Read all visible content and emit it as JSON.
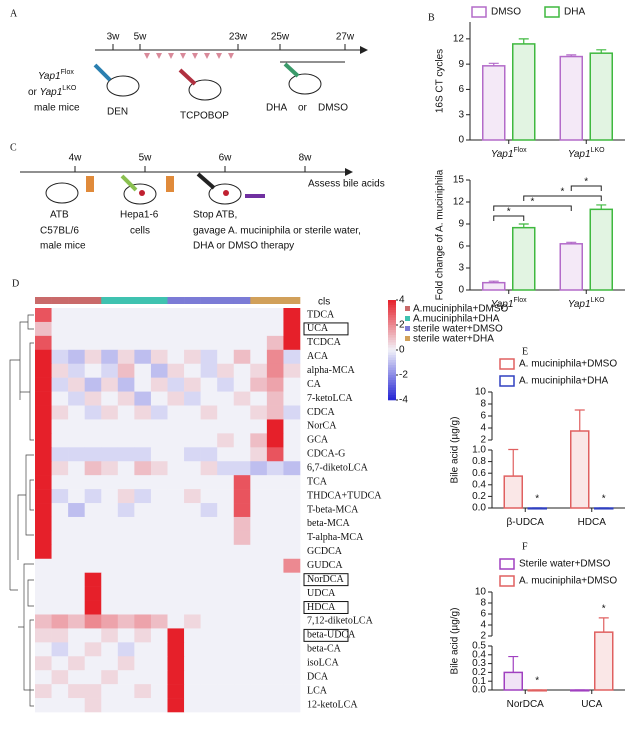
{
  "panel_a": {
    "label": "A",
    "times": [
      "3w",
      "5w",
      "23w",
      "25w",
      "27w"
    ],
    "subject": {
      "gene1": "Yap1",
      "sup1": "Flox",
      "prefix2": "or ",
      "gene2": "Yap1",
      "sup2": "LKO",
      "line3": "male mice"
    },
    "treatments": [
      "DEN",
      "TCPOBOP",
      "DHA",
      "or",
      "DMSO"
    ]
  },
  "panel_c": {
    "label": "C",
    "times": [
      "4w",
      "5w",
      "6w",
      "8w"
    ],
    "endpoint": "Assess bile acids",
    "steps": [
      "ATB",
      "C57BL/6",
      "male mice",
      "Hepa1-6",
      "cells",
      "Stop ATB,",
      "gavage A. muciniphila or sterile water,",
      "DHA or DMSO therapy"
    ]
  },
  "chart_data": [
    {
      "type": "bar",
      "panel": "B",
      "y_label": "16S  CT  cycles",
      "categories": [
        "Yap1",
        "Yap1"
      ],
      "category_superscripts": [
        "Flox",
        "LKO"
      ],
      "series": [
        {
          "name": "DMSO",
          "color": "#b36bc9",
          "values": [
            8.8,
            9.9
          ],
          "errors": [
            0.3,
            0.2
          ]
        },
        {
          "name": "DHA",
          "color": "#3fb83f",
          "values": [
            11.4,
            10.3
          ],
          "errors": [
            0.6,
            0.4
          ]
        }
      ],
      "ylim": [
        0,
        14
      ],
      "yticks": [
        0,
        3,
        6,
        9,
        12
      ]
    },
    {
      "type": "bar",
      "y_label": "Fold change of A. muciniphila",
      "categories": [
        "Yap1",
        "Yap1"
      ],
      "category_superscripts": [
        "Flox",
        "LKO"
      ],
      "series": [
        {
          "name": "DMSO",
          "color": "#b36bc9",
          "values": [
            1.0,
            6.3
          ],
          "errors": [
            0.2,
            0.2
          ]
        },
        {
          "name": "DHA",
          "color": "#3fb83f",
          "values": [
            8.5,
            11.0
          ],
          "errors": [
            0.5,
            0.6
          ]
        }
      ],
      "ylim": [
        0,
        15
      ],
      "yticks": [
        0,
        3,
        6,
        9,
        12,
        15
      ],
      "annotations": [
        "*",
        "*",
        "*",
        "*"
      ]
    },
    {
      "type": "heatmap",
      "panel": "D",
      "legend_title": "cls",
      "zlim": [
        -4,
        4
      ],
      "colorbar_ticks": [
        4,
        2,
        0,
        -2,
        -4
      ],
      "colors": [
        "#2424d4",
        "#f1f1f8",
        "#e6202a"
      ],
      "groups": [
        {
          "name": "A.muciniphila+DMSO",
          "color": "#c96a6a",
          "columns": 4
        },
        {
          "name": "A.muciniphila+DHA",
          "color": "#3fc2b0",
          "columns": 4
        },
        {
          "name": "sterile water+DMSO",
          "color": "#7b7bd6",
          "columns": 5
        },
        {
          "name": "sterile water+DHA",
          "color": "#d1a05a",
          "columns": 3
        }
      ],
      "rows": [
        "TDCA",
        "UCA",
        "TCDCA",
        "ACA",
        "alpha-MCA",
        "CA",
        "7-ketoLCA",
        "CDCA",
        "NorCA",
        "GCA",
        "CDCA-G",
        "6,7-diketoLCA",
        "TCA",
        "THDCA+TUDCA",
        "T-beta-MCA",
        "beta-MCA",
        "T-alpha-MCA",
        "GCDCA",
        "GUDCA",
        "NorDCA",
        "UDCA",
        "HDCA",
        "7,12-diketoLCA",
        "beta-UDCA",
        "beta-CA",
        "isoLCA",
        "DCA",
        "LCA",
        "12-ketoLCA"
      ],
      "boxed_rows": [
        1,
        19,
        21,
        23
      ],
      "values": [
        [
          3,
          0,
          0,
          0,
          0,
          0,
          0,
          0,
          0,
          0,
          0,
          0,
          0,
          0,
          0,
          4
        ],
        [
          1,
          0,
          0,
          0,
          0,
          0,
          0,
          0,
          0,
          0,
          0,
          0,
          0,
          0,
          0,
          4
        ],
        [
          3,
          0,
          0,
          0,
          0,
          0,
          0,
          0,
          0,
          0,
          0,
          0,
          0,
          0,
          1,
          4
        ],
        [
          4,
          -0.5,
          -1,
          0.5,
          -1,
          0.5,
          -1,
          0.5,
          0,
          0.5,
          -0.5,
          0,
          1,
          0,
          2,
          -0.5
        ],
        [
          4,
          0.5,
          -0.5,
          0,
          -0.5,
          1,
          0,
          -1,
          0.5,
          0,
          -0.5,
          0.5,
          0,
          0.5,
          2,
          0.5
        ],
        [
          4,
          -0.5,
          0.5,
          -1,
          0.5,
          -1,
          0,
          0.5,
          -0.5,
          0.5,
          0,
          -0.5,
          0,
          1,
          1.5,
          0
        ],
        [
          4,
          0,
          -0.5,
          0.5,
          0,
          0.5,
          -1,
          0,
          0.5,
          -0.5,
          0,
          0,
          0.5,
          0,
          1,
          0
        ],
        [
          4,
          0.5,
          0,
          -0.5,
          0.5,
          0,
          0.5,
          -0.5,
          0,
          0,
          0.5,
          0,
          0,
          0.5,
          1,
          -0.5
        ],
        [
          4,
          0,
          0,
          0,
          0,
          0,
          0,
          0,
          0,
          0,
          0,
          0,
          0,
          0,
          4,
          0
        ],
        [
          4,
          0,
          0,
          0,
          0,
          0,
          0,
          0,
          0,
          0,
          0,
          0.5,
          0,
          1,
          4,
          0
        ],
        [
          4,
          -0.5,
          -0.5,
          -0.5,
          -0.5,
          -0.5,
          -0.5,
          0,
          0,
          -0.5,
          -0.5,
          0,
          0,
          0.5,
          3,
          0
        ],
        [
          4,
          0.5,
          0,
          1,
          0.5,
          0,
          1,
          0.5,
          0,
          0,
          0.5,
          -0.5,
          -0.5,
          -1,
          -0.5,
          -1
        ],
        [
          4,
          0,
          0,
          0,
          0,
          0,
          0,
          0,
          0,
          0,
          0,
          0,
          3,
          0,
          0,
          0
        ],
        [
          4,
          -0.5,
          0,
          -0.5,
          0,
          0.5,
          -0.5,
          0,
          0,
          0.5,
          0,
          0,
          3,
          0,
          0,
          0
        ],
        [
          4,
          0,
          -1,
          0,
          0,
          -0.5,
          0,
          0,
          0,
          0,
          -0.5,
          0,
          3,
          0,
          0,
          0
        ],
        [
          4,
          0,
          0,
          0,
          0,
          0,
          0,
          0,
          0,
          0,
          0,
          0,
          1,
          0,
          0,
          0
        ],
        [
          4,
          0,
          0,
          0,
          0,
          0,
          0,
          0,
          0,
          0,
          0,
          0,
          1,
          0,
          0,
          0
        ],
        [
          4,
          0,
          0,
          0,
          0,
          0,
          0,
          0,
          0,
          0,
          0,
          0,
          0,
          0,
          0,
          0
        ],
        [
          0,
          0,
          0,
          0,
          0,
          0,
          0,
          0,
          0,
          0,
          0,
          0,
          0,
          0,
          0,
          2
        ],
        [
          0,
          0,
          0,
          4,
          0,
          0,
          0,
          0,
          0,
          0,
          0,
          0,
          0,
          0,
          0,
          0
        ],
        [
          0,
          0,
          0,
          4,
          0,
          0,
          0,
          0,
          0,
          0,
          0,
          0,
          0,
          0,
          0,
          0
        ],
        [
          0,
          0,
          0,
          4,
          0,
          0,
          0,
          0,
          0,
          0,
          0,
          0,
          0,
          0,
          0,
          0
        ],
        [
          1,
          1.5,
          1,
          2,
          1.5,
          1,
          1.5,
          1,
          0,
          0.5,
          0,
          0,
          0,
          0,
          0,
          0
        ],
        [
          0.5,
          0.5,
          0,
          0,
          0.5,
          0,
          0.5,
          0,
          4,
          0,
          0,
          0,
          0,
          0,
          0,
          0
        ],
        [
          0,
          -0.5,
          0,
          0.5,
          0,
          -0.5,
          0,
          0,
          4,
          0,
          0,
          0,
          0,
          0,
          0,
          0
        ],
        [
          0.5,
          0,
          0.5,
          0,
          0,
          0.5,
          0,
          0,
          4,
          0,
          0,
          0,
          0,
          0,
          0,
          0
        ],
        [
          0,
          0.5,
          0,
          0,
          0.5,
          0,
          0,
          0,
          4,
          0,
          0,
          0,
          0,
          0,
          0,
          0
        ],
        [
          0.5,
          0,
          0.5,
          0.5,
          0,
          0,
          0.5,
          0,
          4,
          0,
          0,
          0,
          0,
          0,
          0,
          0
        ],
        [
          0,
          0,
          0,
          0.5,
          0,
          0,
          0,
          0,
          4,
          0,
          0,
          0,
          0,
          0,
          0,
          0
        ]
      ]
    },
    {
      "type": "bar",
      "panel": "E",
      "y_label": "Bile acid (µg/g)",
      "categories": [
        "β-UDCA",
        "HDCA"
      ],
      "series": [
        {
          "name": "A. muciniphila+DMSO",
          "color": "#e06060",
          "values": [
            0.55,
            3.5
          ],
          "errors": [
            0.5,
            3.5
          ]
        },
        {
          "name": "A. muciniphila+DHA",
          "color": "#3040c0",
          "values": [
            0,
            0
          ],
          "errors": [
            0,
            0
          ]
        }
      ],
      "ylim_lower": [
        0,
        1
      ],
      "ylim_upper": [
        2,
        10
      ],
      "yticks": [
        {
          "value": 0,
          "label": "0.0"
        },
        {
          "value": 0.2,
          "label": "0.2"
        },
        {
          "value": 0.4,
          "label": "0.4"
        },
        {
          "value": 0.6,
          "label": "0.6"
        },
        {
          "value": 0.8,
          "label": "0.8"
        },
        {
          "value": 1,
          "label": "1.0"
        },
        2,
        4,
        6,
        8,
        10
      ],
      "annotations": [
        "*",
        "*"
      ]
    },
    {
      "type": "bar",
      "panel": "F",
      "y_label": "Bile acid (µg/g)",
      "categories": [
        "NorDCA",
        "UCA"
      ],
      "series": [
        {
          "name": "Sterile water+DMSO",
          "color": "#a040c0",
          "values": [
            0.2,
            0
          ],
          "errors": [
            0.18,
            0
          ]
        },
        {
          "name": "A. muciniphila+DMSO",
          "color": "#e06060",
          "values": [
            0,
            2.7
          ],
          "errors": [
            0,
            2.6
          ]
        }
      ],
      "ylim_lower": [
        0,
        0.5
      ],
      "ylim_upper": [
        2,
        10
      ],
      "yticks": [
        {
          "value": 0,
          "label": "0.0"
        },
        0.1,
        0.2,
        0.3,
        0.4,
        0.5,
        2,
        4,
        6,
        8,
        10
      ],
      "annotations": [
        "*",
        "*"
      ]
    }
  ]
}
